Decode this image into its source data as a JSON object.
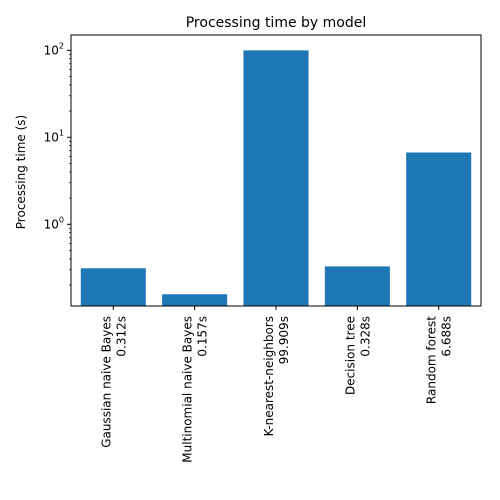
{
  "chart_data": {
    "type": "bar",
    "title": "Processing time by model",
    "xlabel": "",
    "ylabel": "Processing time (s)",
    "yscale": "log",
    "ylim": [
      0.115,
      150
    ],
    "grid": false,
    "categories": [
      [
        "Gaussian naive Bayes",
        "0.312s"
      ],
      [
        "Multinomial naive Bayes",
        "0.157s"
      ],
      [
        "K-nearest-neighbors",
        "99.909s"
      ],
      [
        "Decision tree",
        "0.328s"
      ],
      [
        "Random forest",
        "6.688s"
      ]
    ],
    "values": [
      0.312,
      0.157,
      99.909,
      0.328,
      6.688
    ],
    "yticks": [
      {
        "value": 1,
        "base": "10",
        "exp": "0"
      },
      {
        "value": 10,
        "base": "10",
        "exp": "1"
      },
      {
        "value": 100,
        "base": "10",
        "exp": "2"
      }
    ],
    "colors": {
      "bar": "#1f77b4",
      "axis": "#000000"
    }
  }
}
